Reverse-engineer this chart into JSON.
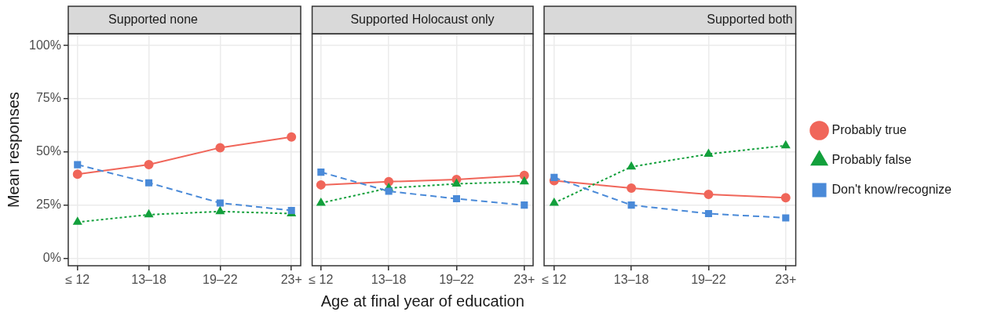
{
  "chart_data": [
    {
      "type": "line",
      "title": "Supported none",
      "ylabel": "Mean responses",
      "categories": [
        "≤ 12",
        "13–18",
        "19–22",
        "23+"
      ],
      "ylim": [
        -3.5,
        105.5
      ],
      "yticks": [
        {
          "value": 0,
          "label": "0%"
        },
        {
          "value": 25,
          "label": "25%"
        },
        {
          "value": 50,
          "label": "50%"
        },
        {
          "value": 75,
          "label": "75%"
        },
        {
          "value": 100,
          "label": "100%"
        }
      ],
      "grid": true,
      "series": [
        {
          "color": "#f0665a",
          "marker": "circle",
          "line_style": "solid",
          "values": [
            39.5,
            44,
            52,
            57
          ]
        },
        {
          "color": "#13a03c",
          "marker": "triangle",
          "line_style": "dotted",
          "values": [
            17,
            20.5,
            22,
            21
          ]
        },
        {
          "color": "#4a8ad8",
          "marker": "square",
          "line_style": "dashed",
          "values": [
            44,
            35.5,
            26,
            22.5
          ]
        }
      ]
    },
    {
      "type": "line",
      "title": "Supported Holocaust only",
      "xlabel": "Age at final year of education",
      "categories": [
        "≤ 12",
        "13–18",
        "19–22",
        "23+"
      ],
      "ylim": [
        -3.5,
        105.5
      ],
      "yticks": [
        0,
        25,
        50,
        75,
        100
      ],
      "grid": true,
      "tick_labels": "x",
      "series": [
        {
          "color": "#f0665a",
          "marker": "circle",
          "line_style": "solid",
          "values": [
            34.5,
            36,
            37,
            39
          ]
        },
        {
          "color": "#13a03c",
          "marker": "triangle",
          "line_style": "dotted",
          "values": [
            26,
            33,
            35,
            36
          ]
        },
        {
          "color": "#4a8ad8",
          "marker": "square",
          "line_style": "dashed",
          "values": [
            40.5,
            31.5,
            28,
            25
          ]
        }
      ]
    },
    {
      "type": "line",
      "title": "Supported both",
      "categories": [
        "≤ 12",
        "13–18",
        "19–22",
        "23+"
      ],
      "ylim": [
        -3.5,
        105.5
      ],
      "yticks": [
        0,
        25,
        50,
        75,
        100
      ],
      "grid": true,
      "tick_labels": "x",
      "legend": "right",
      "series": [
        {
          "name": "Probably true",
          "color": "#f0665a",
          "marker": "circle",
          "line_style": "solid",
          "values": [
            36.5,
            33,
            30,
            28.5
          ]
        },
        {
          "name": "Probably false",
          "color": "#13a03c",
          "marker": "triangle",
          "line_style": "dotted",
          "values": [
            26,
            43,
            49,
            53
          ]
        },
        {
          "name": "Don't know/recognize",
          "color": "#4a8ad8",
          "marker": "square",
          "line_style": "dashed",
          "values": [
            38,
            25,
            21,
            19
          ]
        }
      ]
    }
  ]
}
